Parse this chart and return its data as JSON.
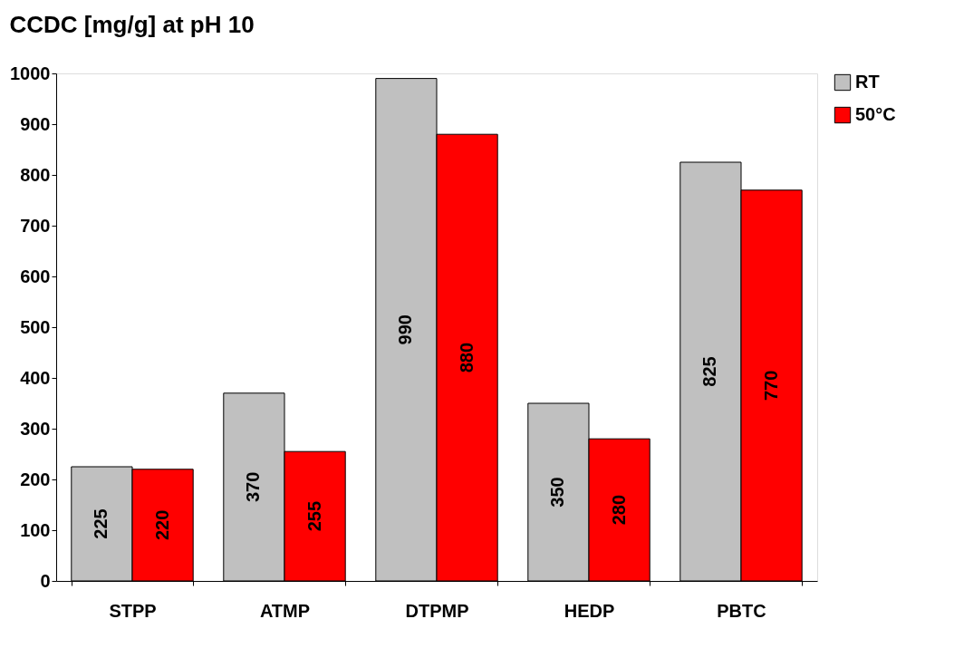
{
  "chart_data": {
    "type": "bar",
    "title": "CCDC [mg/g] at pH 10",
    "categories": [
      "STPP",
      "ATMP",
      "DTPMP",
      "HEDP",
      "PBTC"
    ],
    "series": [
      {
        "name": "RT",
        "color": "#c0c0c0",
        "values": [
          225,
          370,
          990,
          350,
          825
        ]
      },
      {
        "name": "50°C",
        "color": "#ff0000",
        "values": [
          220,
          255,
          880,
          280,
          770
        ]
      }
    ],
    "ylim": [
      0,
      1000
    ],
    "yticks": [
      0,
      100,
      200,
      300,
      400,
      500,
      600,
      700,
      800,
      900,
      1000
    ],
    "grid": false,
    "legend": "right",
    "data_labels": true
  }
}
